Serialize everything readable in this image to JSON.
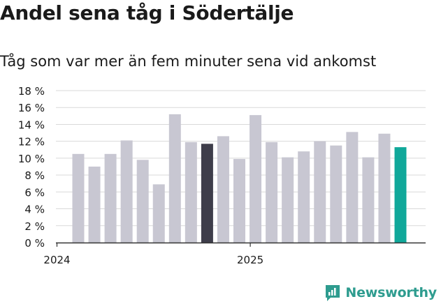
{
  "header": {
    "title": "Andel sena tåg i Södertälje",
    "subtitle": "Tåg som var mer än fem minuter sena vid ankomst"
  },
  "brand": {
    "name": "Newsworthy",
    "color": "#2e9c8f"
  },
  "colors": {
    "bar_default": "#c8c7d2",
    "bar_highlight_dark": "#3e3d4a",
    "bar_highlight_teal": "#10a89a",
    "grid": "#d9d9d9",
    "axis": "#333333",
    "text": "#1a1a1a"
  },
  "chart_data": {
    "type": "bar",
    "title": "Andel sena tåg i Södertälje",
    "subtitle": "Tåg som var mer än fem minuter sena vid ankomst",
    "xlabel": "",
    "ylabel": "",
    "ylim": [
      0,
      18
    ],
    "y_ticks": [
      0,
      2,
      4,
      6,
      8,
      10,
      12,
      14,
      16,
      18
    ],
    "y_tick_labels": [
      "0 %",
      "2 %",
      "4 %",
      "6 %",
      "8 %",
      "10 %",
      "12 %",
      "14 %",
      "16 %",
      "18 %"
    ],
    "x_tick_labels": [
      {
        "label": "2024",
        "index": 0
      },
      {
        "label": "2025",
        "index": 12
      }
    ],
    "unit": "%",
    "grid": true,
    "values": [
      10.5,
      9.0,
      10.5,
      12.1,
      9.8,
      6.9,
      15.2,
      11.9,
      11.7,
      12.6,
      9.9,
      15.1,
      11.9,
      10.1,
      10.8,
      12.0,
      11.5,
      13.1,
      10.1,
      12.9,
      11.3
    ],
    "highlight": [
      {
        "index": 8,
        "color_key": "bar_highlight_dark"
      },
      {
        "index": 20,
        "color_key": "bar_highlight_teal"
      }
    ]
  }
}
